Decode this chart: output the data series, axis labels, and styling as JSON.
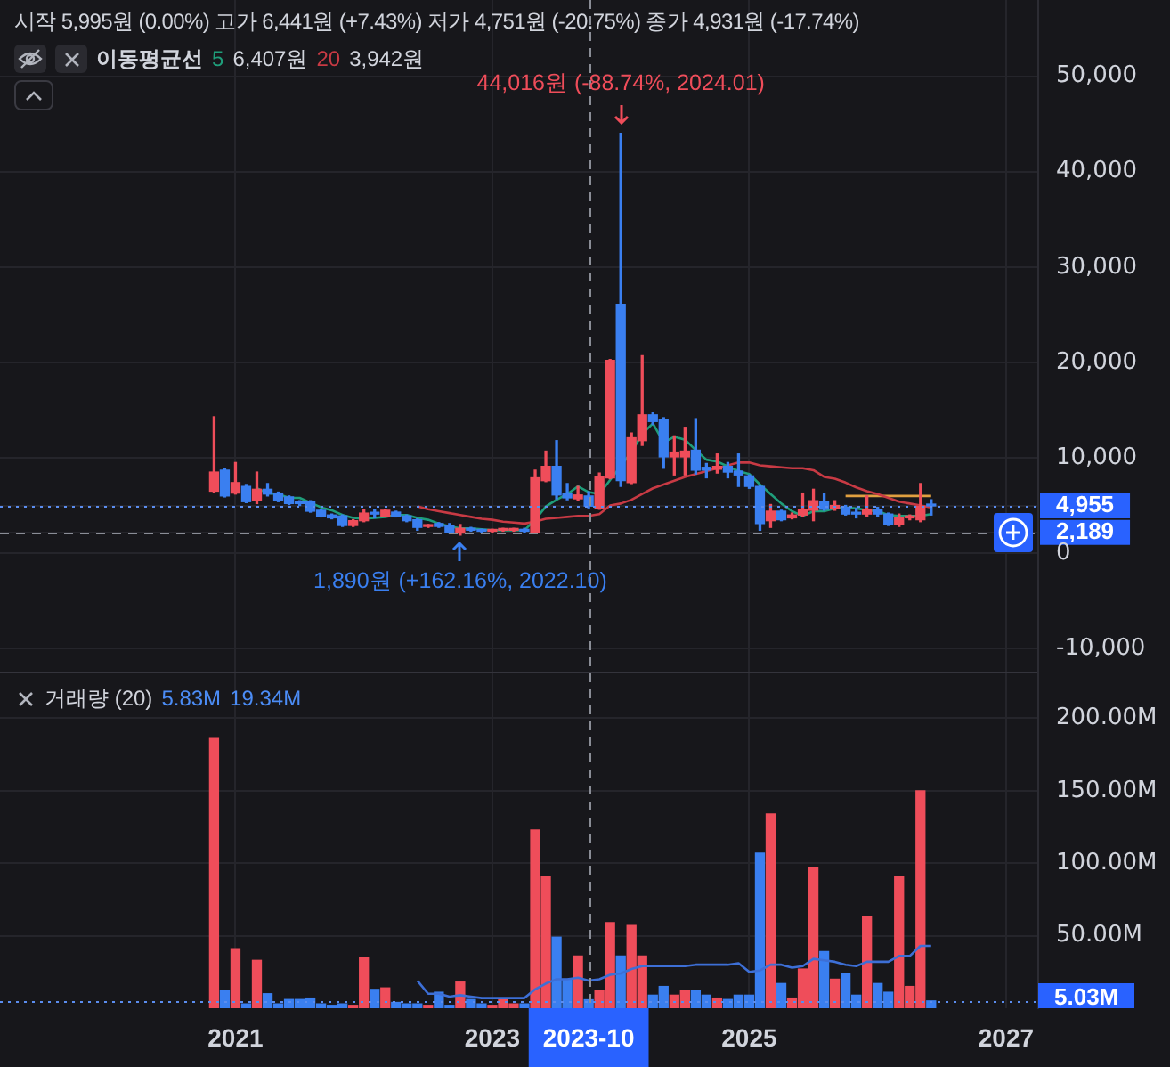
{
  "chart_data": [
    {
      "type": "candlestick",
      "title": "시작 5,995원 (0.00%) 고가 6,441원 (+7.43%) 저가 4,751원 (-20.75%) 종가 4,931원 (-17.74%)",
      "legend_title": "이동평균선",
      "legend": "top left",
      "x": [
        "2020-11",
        "2020-12",
        "2021-01",
        "2021-02",
        "2021-03",
        "2021-04",
        "2021-05",
        "2021-06",
        "2021-07",
        "2021-08",
        "2021-09",
        "2021-10",
        "2021-11",
        "2021-12",
        "2022-01",
        "2022-02",
        "2022-03",
        "2022-04",
        "2022-05",
        "2022-06",
        "2022-07",
        "2022-08",
        "2022-09",
        "2022-10",
        "2022-11",
        "2022-12",
        "2023-01",
        "2023-02",
        "2023-03",
        "2023-04",
        "2023-05",
        "2023-06",
        "2023-07",
        "2023-08",
        "2023-09",
        "2023-10",
        "2023-11",
        "2023-12",
        "2024-01",
        "2024-02",
        "2024-03",
        "2024-04",
        "2024-05",
        "2024-06",
        "2024-07",
        "2024-08",
        "2024-09",
        "2024-10",
        "2024-11",
        "2024-12",
        "2025-01",
        "2025-02",
        "2025-03",
        "2025-04",
        "2025-05",
        "2025-06",
        "2025-07",
        "2025-08",
        "2025-09",
        "2025-10",
        "2025-11",
        "2025-12",
        "2026-01",
        "2026-02",
        "2026-03",
        "2026-04",
        "2026-05",
        "2026-06"
      ],
      "ohlc": [
        [
          6500,
          14300,
          6400,
          8500
        ],
        [
          8700,
          8900,
          5900,
          6000
        ],
        [
          6300,
          9500,
          6200,
          7400
        ],
        [
          7000,
          7200,
          5300,
          5400
        ],
        [
          5500,
          8500,
          5200,
          6700
        ],
        [
          6700,
          7300,
          6000,
          6200
        ],
        [
          6300,
          6400,
          5400,
          5500
        ],
        [
          5900,
          6000,
          5100,
          5200
        ],
        [
          5300,
          5500,
          5000,
          5200
        ],
        [
          5400,
          5500,
          4300,
          4400
        ],
        [
          4500,
          4600,
          3800,
          3900
        ],
        [
          4000,
          4100,
          3600,
          3700
        ],
        [
          3900,
          4000,
          2800,
          2900
        ],
        [
          2900,
          3500,
          2800,
          3400
        ],
        [
          3400,
          4600,
          3300,
          4200
        ],
        [
          4200,
          4600,
          3700,
          4100
        ],
        [
          3900,
          4600,
          3800,
          4500
        ],
        [
          4300,
          4400,
          3800,
          3900
        ],
        [
          3900,
          4000,
          3300,
          3400
        ],
        [
          3500,
          3600,
          2400,
          2700
        ],
        [
          2800,
          3000,
          2700,
          2900
        ],
        [
          3100,
          3200,
          2700,
          2800
        ],
        [
          2900,
          3100,
          2100,
          2200
        ],
        [
          2100,
          3000,
          1890,
          2600
        ],
        [
          2600,
          2700,
          2300,
          2400
        ],
        [
          2400,
          2500,
          2200,
          2300
        ],
        [
          2300,
          2500,
          2200,
          2400
        ],
        [
          2400,
          2600,
          2300,
          2500
        ],
        [
          2400,
          2600,
          2300,
          2500
        ],
        [
          2500,
          2600,
          2200,
          2300
        ],
        [
          2200,
          8700,
          2100,
          7900
        ],
        [
          7600,
          10700,
          7500,
          9100
        ],
        [
          9100,
          11800,
          5700,
          6100
        ],
        [
          6200,
          7300,
          5600,
          5800
        ],
        [
          5700,
          7000,
          5500,
          6100
        ],
        [
          5995,
          6441,
          4751,
          4931
        ],
        [
          4700,
          8400,
          4600,
          8000
        ],
        [
          7900,
          20300,
          7800,
          20200
        ],
        [
          26100,
          44016,
          7000,
          7600
        ],
        [
          7400,
          12600,
          7300,
          12100
        ],
        [
          11800,
          20700,
          11300,
          14500
        ],
        [
          14500,
          14700,
          13500,
          13800
        ],
        [
          14000,
          14200,
          8900,
          10100
        ],
        [
          10100,
          12300,
          8200,
          10600
        ],
        [
          10100,
          13200,
          8200,
          10700
        ],
        [
          10800,
          14100,
          8300,
          8700
        ],
        [
          9000,
          9400,
          7900,
          8700
        ],
        [
          8800,
          10400,
          8400,
          9100
        ],
        [
          9100,
          9500,
          7900,
          8500
        ],
        [
          8600,
          10400,
          7000,
          8200
        ],
        [
          8100,
          8200,
          6800,
          7000
        ],
        [
          7000,
          7100,
          2400,
          3100
        ],
        [
          3400,
          5100,
          2700,
          4400
        ],
        [
          4400,
          4500,
          3400,
          3500
        ],
        [
          3700,
          4200,
          3600,
          4000
        ],
        [
          4000,
          6300,
          3900,
          4600
        ],
        [
          4500,
          6700,
          3400,
          5500
        ],
        [
          5400,
          6200,
          4500,
          4600
        ],
        [
          4700,
          5500,
          4500,
          5000
        ],
        [
          4800,
          5000,
          4000,
          4100
        ],
        [
          4200,
          4700,
          3700,
          4100
        ],
        [
          4100,
          6000,
          3900,
          4600
        ],
        [
          4600,
          4800,
          3900,
          4100
        ],
        [
          4100,
          4200,
          2900,
          3000
        ],
        [
          3000,
          4100,
          2800,
          3700
        ],
        [
          3700,
          4000,
          3500,
          3900
        ],
        [
          3500,
          7300,
          3300,
          4900
        ],
        [
          5100,
          5600,
          4000,
          4955
        ]
      ],
      "colors": [
        "#ef4d5a",
        "#3a7ff0",
        "#ef4d5a",
        "#3a7ff0",
        "#ef4d5a",
        "#3a7ff0",
        "#3a7ff0",
        "#3a7ff0",
        "#3a7ff0",
        "#3a7ff0",
        "#3a7ff0",
        "#3a7ff0",
        "#3a7ff0",
        "#ef4d5a",
        "#ef4d5a",
        "#3a7ff0",
        "#ef4d5a",
        "#3a7ff0",
        "#3a7ff0",
        "#3a7ff0",
        "#ef4d5a",
        "#3a7ff0",
        "#3a7ff0",
        "#ef4d5a",
        "#3a7ff0",
        "#3a7ff0",
        "#ef4d5a",
        "#ef4d5a",
        "#ef4d5a",
        "#3a7ff0",
        "#ef4d5a",
        "#ef4d5a",
        "#3a7ff0",
        "#3a7ff0",
        "#ef4d5a",
        "#3a7ff0",
        "#ef4d5a",
        "#ef4d5a",
        "#3a7ff0",
        "#ef4d5a",
        "#ef4d5a",
        "#3a7ff0",
        "#3a7ff0",
        "#ef4d5a",
        "#ef4d5a",
        "#3a7ff0",
        "#3a7ff0",
        "#ef4d5a",
        "#3a7ff0",
        "#3a7ff0",
        "#3a7ff0",
        "#3a7ff0",
        "#ef4d5a",
        "#3a7ff0",
        "#ef4d5a",
        "#ef4d5a",
        "#ef4d5a",
        "#3a7ff0",
        "#ef4d5a",
        "#3a7ff0",
        "#3a7ff0",
        "#ef4d5a",
        "#3a7ff0",
        "#3a7ff0",
        "#ef4d5a",
        "#ef4d5a",
        "#ef4d5a",
        "#3a7ff0"
      ],
      "series": [
        {
          "name": "5",
          "type": "line",
          "color": "#1f9d7a",
          "x": [
            "2021-03",
            "2021-04",
            "2021-05",
            "2021-06",
            "2021-07",
            "2021-08",
            "2021-09",
            "2021-10",
            "2021-11",
            "2021-12",
            "2022-01",
            "2022-02",
            "2022-03",
            "2022-04",
            "2022-05",
            "2022-06",
            "2022-07",
            "2022-08",
            "2022-09",
            "2022-10",
            "2022-11",
            "2022-12",
            "2023-01",
            "2023-02",
            "2023-03",
            "2023-04",
            "2023-05",
            "2023-06",
            "2023-07",
            "2023-08",
            "2023-09",
            "2023-10",
            "2023-11",
            "2023-12",
            "2024-01",
            "2024-02",
            "2024-03",
            "2024-04",
            "2024-05",
            "2024-06",
            "2024-07",
            "2024-08",
            "2024-09",
            "2024-10",
            "2024-11",
            "2024-12",
            "2025-01",
            "2025-02",
            "2025-03",
            "2025-04",
            "2025-05",
            "2025-06",
            "2025-07",
            "2025-08",
            "2025-09",
            "2025-10",
            "2025-11",
            "2025-12",
            "2026-01",
            "2026-02",
            "2026-03",
            "2026-04",
            "2026-05",
            "2026-06"
          ],
          "values": [
            6800,
            6300,
            6200,
            5800,
            5800,
            5300,
            4800,
            4500,
            4000,
            3700,
            3600,
            3700,
            3800,
            4000,
            4000,
            3700,
            3500,
            3100,
            2800,
            2600,
            2600,
            2500,
            2400,
            2400,
            2400,
            2400,
            3500,
            4900,
            5600,
            6200,
            7000,
            6400,
            6200,
            null,
            null,
            10600,
            12500,
            13600,
            11600,
            12200,
            11900,
            10800,
            9800,
            9600,
            9100,
            8600,
            8300,
            7200,
            6200,
            5200,
            4400,
            3900,
            4400,
            4400,
            4700,
            4800,
            4700,
            4500,
            4400,
            4000,
            3900,
            3900,
            3900,
            4100
          ]
        },
        {
          "name": "20",
          "type": "line",
          "color": "#c83a44",
          "x": [
            "2022-06",
            "2022-07",
            "2022-08",
            "2022-09",
            "2022-10",
            "2022-11",
            "2022-12",
            "2023-01",
            "2023-02",
            "2023-03",
            "2023-04",
            "2023-05",
            "2023-06",
            "2023-07",
            "2023-08",
            "2023-09",
            "2023-10",
            "2023-11",
            "2023-12",
            "2024-01",
            "2024-02",
            "2024-03",
            "2024-04",
            "2024-05",
            "2024-06",
            "2024-07",
            "2024-08",
            "2024-09",
            "2024-10",
            "2024-11",
            "2024-12",
            "2025-01",
            "2025-02",
            "2025-03",
            "2025-04",
            "2025-05",
            "2025-06",
            "2025-07",
            "2025-08",
            "2025-09",
            "2025-10",
            "2025-11",
            "2025-12",
            "2026-01",
            "2026-02",
            "2026-03",
            "2026-04",
            "2026-05",
            "2026-06"
          ],
          "values": [
            4900,
            4600,
            4400,
            4200,
            4000,
            3800,
            3600,
            3500,
            3300,
            3200,
            3100,
            3300,
            3600,
            3700,
            3800,
            3900,
            3900,
            4100,
            5000,
            5200,
            5600,
            6200,
            6800,
            7200,
            7600,
            8000,
            8300,
            8600,
            8900,
            9200,
            9500,
            9500,
            9200,
            9100,
            9000,
            8900,
            8900,
            8700,
            8000,
            7800,
            7400,
            6900,
            6500,
            6200,
            5800,
            5400,
            5200,
            5000,
            4800
          ]
        },
        {
          "type": "line",
          "color": "#e0a040",
          "x": [
            "2025-10",
            "2026-06"
          ],
          "values": [
            6000,
            6000
          ]
        }
      ],
      "annotations": [
        "6,407원",
        "3,942원",
        {
          "text": "44,016원 (-88.74%, 2024.01)",
          "x": "2024-01",
          "y": 44016
        },
        {
          "text": "1,890원 (+162.16%, 2022.10)",
          "x": "2022-10",
          "y": 1890
        }
      ],
      "ref_lines": [
        {
          "axis": "x",
          "value": "2023-10",
          "line_style": "dashed",
          "color": "#8a8d96"
        },
        {
          "axis": "y",
          "value": 4955,
          "line_style": "dotted",
          "color": "#5b8def"
        },
        {
          "axis": "y",
          "value": 2189,
          "line_style": "dashed",
          "color": "#8a8d96"
        }
      ],
      "xlim": [
        "2019-03",
        "2027-04"
      ],
      "xticks": [
        "2021",
        "2023",
        "2025",
        "2027"
      ],
      "ylim": [
        -12600,
        58000
      ],
      "yticks": [
        {
          "value": 50000,
          "label": "50,000"
        },
        {
          "value": 40000,
          "label": "40,000"
        },
        {
          "value": 30000,
          "label": "30,000"
        },
        {
          "value": 20000,
          "label": "20,000"
        },
        {
          "value": 10000,
          "label": "10,000"
        },
        {
          "value": 4955,
          "label": "4,955"
        },
        {
          "value": 2189,
          "label": "2,189"
        },
        0,
        {
          "value": -10000,
          "label": "-10,000"
        }
      ],
      "grid": true,
      "tick_labels": "y"
    },
    {
      "type": "bar",
      "title": "거래량 (20)",
      "x": [
        "2020-11",
        "2020-12",
        "2021-01",
        "2021-02",
        "2021-03",
        "2021-04",
        "2021-05",
        "2021-06",
        "2021-07",
        "2021-08",
        "2021-09",
        "2021-10",
        "2021-11",
        "2021-12",
        "2022-01",
        "2022-02",
        "2022-03",
        "2022-04",
        "2022-05",
        "2022-06",
        "2022-07",
        "2022-08",
        "2022-09",
        "2022-10",
        "2022-11",
        "2022-12",
        "2023-01",
        "2023-02",
        "2023-03",
        "2023-04",
        "2023-05",
        "2023-06",
        "2023-07",
        "2023-08",
        "2023-09",
        "2023-10",
        "2023-11",
        "2023-12",
        "2024-01",
        "2024-02",
        "2024-03",
        "2024-04",
        "2024-05",
        "2024-06",
        "2024-07",
        "2024-08",
        "2024-09",
        "2024-10",
        "2024-11",
        "2024-12",
        "2025-01",
        "2025-02",
        "2025-03",
        "2025-04",
        "2025-05",
        "2025-06",
        "2025-07",
        "2025-08",
        "2025-09",
        "2025-10",
        "2025-11",
        "2025-12",
        "2026-01",
        "2026-02",
        "2026-03",
        "2026-04",
        "2026-05",
        "2026-06"
      ],
      "series": [
        {
          "type": "bar",
          "colors": [
            "#ef4d5a",
            "#3a7ff0",
            "#ef4d5a",
            "#3a7ff0",
            "#ef4d5a",
            "#3a7ff0",
            "#3a7ff0",
            "#3a7ff0",
            "#3a7ff0",
            "#3a7ff0",
            "#3a7ff0",
            "#3a7ff0",
            "#3a7ff0",
            "#ef4d5a",
            "#ef4d5a",
            "#3a7ff0",
            "#ef4d5a",
            "#3a7ff0",
            "#3a7ff0",
            "#3a7ff0",
            "#ef4d5a",
            "#3a7ff0",
            "#3a7ff0",
            "#ef4d5a",
            "#3a7ff0",
            "#3a7ff0",
            "#ef4d5a",
            "#ef4d5a",
            "#ef4d5a",
            "#3a7ff0",
            "#ef4d5a",
            "#ef4d5a",
            "#3a7ff0",
            "#3a7ff0",
            "#ef4d5a",
            "#3a7ff0",
            "#ef4d5a",
            "#ef4d5a",
            "#3a7ff0",
            "#ef4d5a",
            "#ef4d5a",
            "#3a7ff0",
            "#3a7ff0",
            "#ef4d5a",
            "#ef4d5a",
            "#3a7ff0",
            "#3a7ff0",
            "#ef4d5a",
            "#3a7ff0",
            "#3a7ff0",
            "#3a7ff0",
            "#3a7ff0",
            "#ef4d5a",
            "#3a7ff0",
            "#ef4d5a",
            "#ef4d5a",
            "#ef4d5a",
            "#3a7ff0",
            "#ef4d5a",
            "#3a7ff0",
            "#3a7ff0",
            "#ef4d5a",
            "#3a7ff0",
            "#3a7ff0",
            "#ef4d5a",
            "#ef4d5a",
            "#ef4d5a",
            "#3a7ff0"
          ],
          "values": [
            186,
            12,
            41,
            3,
            33,
            10,
            3,
            6,
            6,
            7,
            3,
            2,
            3,
            2,
            35,
            13,
            14,
            4,
            3,
            3,
            2,
            11,
            2,
            18,
            6,
            3,
            2,
            6,
            3,
            3,
            123,
            91,
            49,
            20,
            36,
            5.83,
            12,
            59,
            36,
            57,
            36,
            9,
            15,
            9,
            12,
            12,
            9,
            7,
            6,
            9,
            9,
            107,
            134,
            17,
            7,
            27,
            97,
            39,
            20,
            24,
            9,
            63,
            17,
            11,
            91,
            15,
            150,
            5.03
          ]
        },
        {
          "type": "line",
          "color": "#3d6fd6",
          "x": [
            "2022-06",
            "2022-07",
            "2022-08",
            "2022-09",
            "2022-10",
            "2022-11",
            "2022-12",
            "2023-01",
            "2023-02",
            "2023-03",
            "2023-04",
            "2023-05",
            "2023-06",
            "2023-07",
            "2023-08",
            "2023-09",
            "2023-10",
            "2023-11",
            "2023-12",
            "2024-01",
            "2024-02",
            "2024-03",
            "2024-04",
            "2024-05",
            "2024-06",
            "2024-07",
            "2024-08",
            "2024-09",
            "2024-10",
            "2024-11",
            "2024-12",
            "2025-01",
            "2025-02",
            "2025-03",
            "2025-04",
            "2025-05",
            "2025-06",
            "2025-07",
            "2025-08",
            "2025-09",
            "2025-10",
            "2025-11",
            "2025-12",
            "2026-01",
            "2026-02",
            "2026-03",
            "2026-04",
            "2026-05",
            "2026-06"
          ],
          "values": [
            19,
            10,
            10,
            8,
            9,
            8,
            7,
            7,
            7,
            7,
            7,
            13,
            17,
            20,
            20,
            21,
            19,
            20,
            23,
            24,
            27,
            29,
            29,
            29,
            29,
            29,
            30,
            30,
            30,
            30,
            31,
            25,
            26,
            30,
            30,
            28,
            29,
            34,
            33,
            32,
            30,
            29,
            32,
            32,
            32,
            36,
            36,
            43,
            43
          ]
        }
      ],
      "annotations": [
        "5.83M",
        "19.34M"
      ],
      "ref_lines": [
        {
          "axis": "x",
          "value": "2023-10",
          "label": "2023-10",
          "line_style": "dashed",
          "color": "#8a8d96"
        },
        {
          "axis": "y",
          "value": 5.03,
          "label": "5.03M",
          "line_style": "dotted",
          "color": "#5b8def"
        }
      ],
      "xlim": [
        "2019-03",
        "2027-04"
      ],
      "xticks": [
        "2021",
        "2023",
        "2025",
        "2027"
      ],
      "ylim": [
        0,
        231
      ],
      "yticks": [
        {
          "value": 50,
          "label": "50.00M"
        },
        {
          "value": 100,
          "label": "100.00M"
        },
        {
          "value": 150,
          "label": "150.00M"
        },
        {
          "value": 200,
          "label": "200.00M"
        }
      ],
      "grid": true
    }
  ]
}
